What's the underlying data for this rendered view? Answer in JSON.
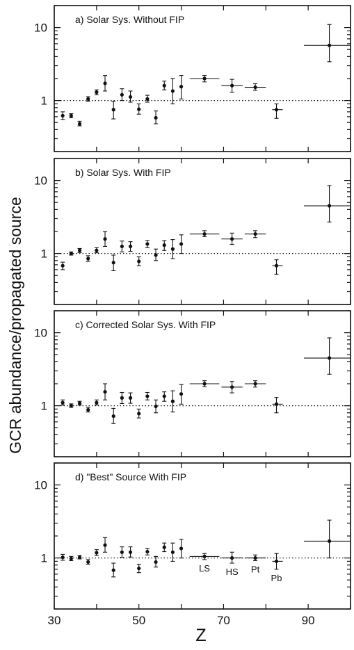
{
  "figure": {
    "ylabel": "GCR abundance/propagated source",
    "xlabel": "Z",
    "x_ticks": [
      "30",
      "50",
      "70",
      "90"
    ]
  },
  "chart_data": [
    {
      "type": "scatter",
      "title": "a) Solar Sys. Without FIP",
      "xlim": [
        30,
        100
      ],
      "ylim": [
        0.2,
        20
      ],
      "yscale": "log",
      "y_ticks": [
        "10",
        "1"
      ],
      "reference_line": 1,
      "points": [
        {
          "x": 32,
          "y": 0.62,
          "ylo": 0.55,
          "yhi": 0.7
        },
        {
          "x": 34,
          "y": 0.62,
          "ylo": 0.58,
          "yhi": 0.66
        },
        {
          "x": 36,
          "y": 0.48,
          "ylo": 0.45,
          "yhi": 0.52
        },
        {
          "x": 38,
          "y": 1.05,
          "ylo": 0.98,
          "yhi": 1.13
        },
        {
          "x": 40,
          "y": 1.3,
          "ylo": 1.2,
          "yhi": 1.4
        },
        {
          "x": 42,
          "y": 1.72,
          "ylo": 1.35,
          "yhi": 2.2
        },
        {
          "x": 44,
          "y": 0.75,
          "ylo": 0.56,
          "yhi": 0.98
        },
        {
          "x": 46,
          "y": 1.2,
          "ylo": 1.0,
          "yhi": 1.45
        },
        {
          "x": 48,
          "y": 1.12,
          "ylo": 0.95,
          "yhi": 1.35
        },
        {
          "x": 50,
          "y": 0.76,
          "ylo": 0.65,
          "yhi": 0.9
        },
        {
          "x": 52,
          "y": 1.05,
          "ylo": 0.95,
          "yhi": 1.18
        },
        {
          "x": 54,
          "y": 0.58,
          "ylo": 0.48,
          "yhi": 0.72
        },
        {
          "x": 56,
          "y": 1.6,
          "ylo": 1.4,
          "yhi": 1.85
        },
        {
          "x": 58,
          "y": 1.35,
          "ylo": 0.9,
          "yhi": 2.0
        },
        {
          "x": 60,
          "y": 1.55,
          "ylo": 1.05,
          "yhi": 2.2
        },
        {
          "x": 65.5,
          "y": 2.0,
          "ylo": 1.8,
          "yhi": 2.2,
          "xlo": 62,
          "xhi": 69
        },
        {
          "x": 72,
          "y": 1.6,
          "ylo": 1.3,
          "yhi": 1.95,
          "xlo": 69.5,
          "xhi": 74.5
        },
        {
          "x": 77.5,
          "y": 1.52,
          "ylo": 1.38,
          "yhi": 1.7,
          "xlo": 75,
          "xhi": 80
        },
        {
          "x": 82.5,
          "y": 0.75,
          "ylo": 0.57,
          "yhi": 0.9,
          "xlo": 81.5,
          "xhi": 84
        },
        {
          "x": 95,
          "y": 5.7,
          "ylo": 3.4,
          "yhi": 11.0,
          "xlo": 89,
          "xhi": 101
        }
      ]
    },
    {
      "type": "scatter",
      "title": "b) Solar Sys. With FIP",
      "xlim": [
        30,
        100
      ],
      "ylim": [
        0.2,
        20
      ],
      "yscale": "log",
      "y_ticks": [
        "10",
        "1"
      ],
      "reference_line": 1,
      "points": [
        {
          "x": 32,
          "y": 0.68,
          "ylo": 0.6,
          "yhi": 0.76
        },
        {
          "x": 34,
          "y": 1.0,
          "ylo": 0.95,
          "yhi": 1.05
        },
        {
          "x": 36,
          "y": 1.1,
          "ylo": 1.03,
          "yhi": 1.17
        },
        {
          "x": 38,
          "y": 0.85,
          "ylo": 0.78,
          "yhi": 0.93
        },
        {
          "x": 40,
          "y": 1.1,
          "ylo": 1.02,
          "yhi": 1.2
        },
        {
          "x": 42,
          "y": 1.58,
          "ylo": 1.25,
          "yhi": 2.0
        },
        {
          "x": 44,
          "y": 0.75,
          "ylo": 0.58,
          "yhi": 0.95
        },
        {
          "x": 46,
          "y": 1.25,
          "ylo": 1.05,
          "yhi": 1.48
        },
        {
          "x": 48,
          "y": 1.25,
          "ylo": 1.07,
          "yhi": 1.45
        },
        {
          "x": 50,
          "y": 0.78,
          "ylo": 0.68,
          "yhi": 0.9
        },
        {
          "x": 52,
          "y": 1.35,
          "ylo": 1.2,
          "yhi": 1.5
        },
        {
          "x": 54,
          "y": 0.95,
          "ylo": 0.8,
          "yhi": 1.15
        },
        {
          "x": 56,
          "y": 1.3,
          "ylo": 1.1,
          "yhi": 1.5
        },
        {
          "x": 58,
          "y": 1.15,
          "ylo": 0.85,
          "yhi": 1.55
        },
        {
          "x": 60,
          "y": 1.35,
          "ylo": 1.0,
          "yhi": 1.8
        },
        {
          "x": 65.5,
          "y": 1.85,
          "ylo": 1.7,
          "yhi": 2.05,
          "xlo": 62,
          "xhi": 69
        },
        {
          "x": 72,
          "y": 1.58,
          "ylo": 1.33,
          "yhi": 1.9,
          "xlo": 69.5,
          "xhi": 74.5
        },
        {
          "x": 77.5,
          "y": 1.85,
          "ylo": 1.65,
          "yhi": 2.05,
          "xlo": 75,
          "xhi": 80
        },
        {
          "x": 82.5,
          "y": 0.68,
          "ylo": 0.52,
          "yhi": 0.82,
          "xlo": 81.5,
          "xhi": 84
        },
        {
          "x": 95,
          "y": 4.5,
          "ylo": 2.7,
          "yhi": 8.5,
          "xlo": 89,
          "xhi": 101
        }
      ]
    },
    {
      "type": "scatter",
      "title": "c) Corrected Solar Sys. With FIP",
      "xlim": [
        30,
        100
      ],
      "ylim": [
        0.2,
        20
      ],
      "yscale": "log",
      "y_ticks": [
        "10",
        "1"
      ],
      "reference_line": 1,
      "points": [
        {
          "x": 32,
          "y": 1.1,
          "ylo": 1.02,
          "yhi": 1.2
        },
        {
          "x": 34,
          "y": 1.0,
          "ylo": 0.95,
          "yhi": 1.06
        },
        {
          "x": 36,
          "y": 1.08,
          "ylo": 1.02,
          "yhi": 1.15
        },
        {
          "x": 38,
          "y": 0.88,
          "ylo": 0.82,
          "yhi": 0.95
        },
        {
          "x": 40,
          "y": 1.1,
          "ylo": 1.02,
          "yhi": 1.2
        },
        {
          "x": 42,
          "y": 1.55,
          "ylo": 1.2,
          "yhi": 2.0
        },
        {
          "x": 44,
          "y": 0.72,
          "ylo": 0.57,
          "yhi": 0.92
        },
        {
          "x": 46,
          "y": 1.28,
          "ylo": 1.07,
          "yhi": 1.52
        },
        {
          "x": 48,
          "y": 1.28,
          "ylo": 1.08,
          "yhi": 1.5
        },
        {
          "x": 50,
          "y": 0.78,
          "ylo": 0.68,
          "yhi": 0.9
        },
        {
          "x": 52,
          "y": 1.35,
          "ylo": 1.2,
          "yhi": 1.52
        },
        {
          "x": 54,
          "y": 0.98,
          "ylo": 0.8,
          "yhi": 1.2
        },
        {
          "x": 56,
          "y": 1.35,
          "ylo": 1.15,
          "yhi": 1.55
        },
        {
          "x": 58,
          "y": 1.15,
          "ylo": 0.82,
          "yhi": 1.6
        },
        {
          "x": 60,
          "y": 1.45,
          "ylo": 1.05,
          "yhi": 1.95
        },
        {
          "x": 65.5,
          "y": 2.0,
          "ylo": 1.82,
          "yhi": 2.2,
          "xlo": 62,
          "xhi": 69
        },
        {
          "x": 72,
          "y": 1.8,
          "ylo": 1.5,
          "yhi": 2.15,
          "xlo": 69.5,
          "xhi": 74.5
        },
        {
          "x": 77.5,
          "y": 2.0,
          "ylo": 1.8,
          "yhi": 2.2,
          "xlo": 75,
          "xhi": 80
        },
        {
          "x": 82.5,
          "y": 1.05,
          "ylo": 0.8,
          "yhi": 1.3,
          "xlo": 81.5,
          "xhi": 84
        },
        {
          "x": 95,
          "y": 4.5,
          "ylo": 2.7,
          "yhi": 8.5,
          "xlo": 89,
          "xhi": 101
        }
      ]
    },
    {
      "type": "scatter",
      "title": "d) \"Best\" Source With FIP",
      "xlim": [
        30,
        100
      ],
      "ylim": [
        0.2,
        20
      ],
      "yscale": "log",
      "y_ticks": [
        "10",
        "1"
      ],
      "reference_line": 1,
      "points": [
        {
          "x": 32,
          "y": 1.02,
          "ylo": 0.93,
          "yhi": 1.12
        },
        {
          "x": 34,
          "y": 0.98,
          "ylo": 0.92,
          "yhi": 1.05
        },
        {
          "x": 36,
          "y": 1.02,
          "ylo": 0.97,
          "yhi": 1.08
        },
        {
          "x": 38,
          "y": 0.88,
          "ylo": 0.82,
          "yhi": 0.95
        },
        {
          "x": 40,
          "y": 1.18,
          "ylo": 1.08,
          "yhi": 1.3
        },
        {
          "x": 42,
          "y": 1.5,
          "ylo": 1.2,
          "yhi": 1.9
        },
        {
          "x": 44,
          "y": 0.68,
          "ylo": 0.55,
          "yhi": 0.85
        },
        {
          "x": 46,
          "y": 1.2,
          "ylo": 1.02,
          "yhi": 1.42
        },
        {
          "x": 48,
          "y": 1.2,
          "ylo": 1.03,
          "yhi": 1.42
        },
        {
          "x": 50,
          "y": 0.72,
          "ylo": 0.63,
          "yhi": 0.82
        },
        {
          "x": 52,
          "y": 1.22,
          "ylo": 1.1,
          "yhi": 1.35
        },
        {
          "x": 54,
          "y": 0.88,
          "ylo": 0.75,
          "yhi": 1.05
        },
        {
          "x": 56,
          "y": 1.4,
          "ylo": 1.22,
          "yhi": 1.6
        },
        {
          "x": 58,
          "y": 1.2,
          "ylo": 0.9,
          "yhi": 1.6
        },
        {
          "x": 60,
          "y": 1.35,
          "ylo": 1.0,
          "yhi": 1.8
        },
        {
          "x": 65.5,
          "y": 1.05,
          "ylo": 0.95,
          "yhi": 1.15,
          "xlo": 62,
          "xhi": 69,
          "label": "LS"
        },
        {
          "x": 72,
          "y": 1.0,
          "ylo": 0.85,
          "yhi": 1.2,
          "xlo": 69.5,
          "xhi": 74.5,
          "label": "HS"
        },
        {
          "x": 77.5,
          "y": 1.0,
          "ylo": 0.92,
          "yhi": 1.1,
          "xlo": 75,
          "xhi": 80,
          "label": "Pt"
        },
        {
          "x": 82.5,
          "y": 0.9,
          "ylo": 0.7,
          "yhi": 1.15,
          "xlo": 81.5,
          "xhi": 84,
          "label": "Pb"
        },
        {
          "x": 95,
          "y": 1.7,
          "ylo": 1.0,
          "yhi": 3.3,
          "xlo": 89,
          "xhi": 101
        }
      ]
    }
  ]
}
